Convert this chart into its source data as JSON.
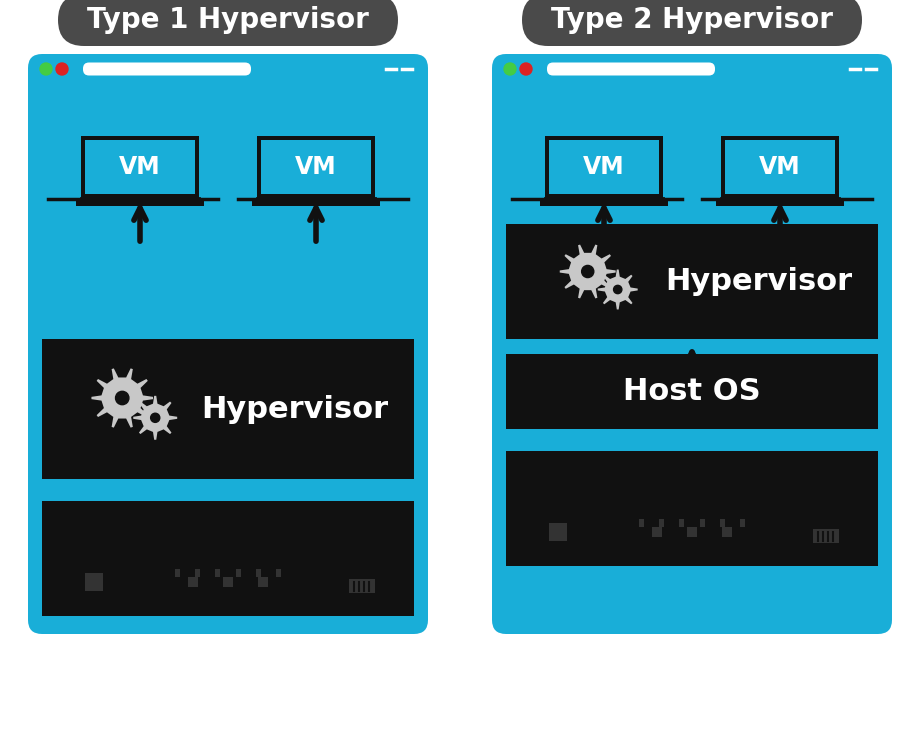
{
  "bg_color": "#ffffff",
  "panel_bg": "#19aed8",
  "black_box": "#111111",
  "title_bg": "#4a4a4a",
  "title_text_color": "#ffffff",
  "gear_color": "#c8c8c8",
  "hypervisor_text": "Hypervisor",
  "host_os_text": "Host OS",
  "type1_title": "Type 1 Hypervisor",
  "type2_title": "Type 2 Hypervisor",
  "arrow_color": "#111111",
  "green_dot": "#44cc44",
  "red_dot": "#dd2222",
  "white": "#ffffff"
}
